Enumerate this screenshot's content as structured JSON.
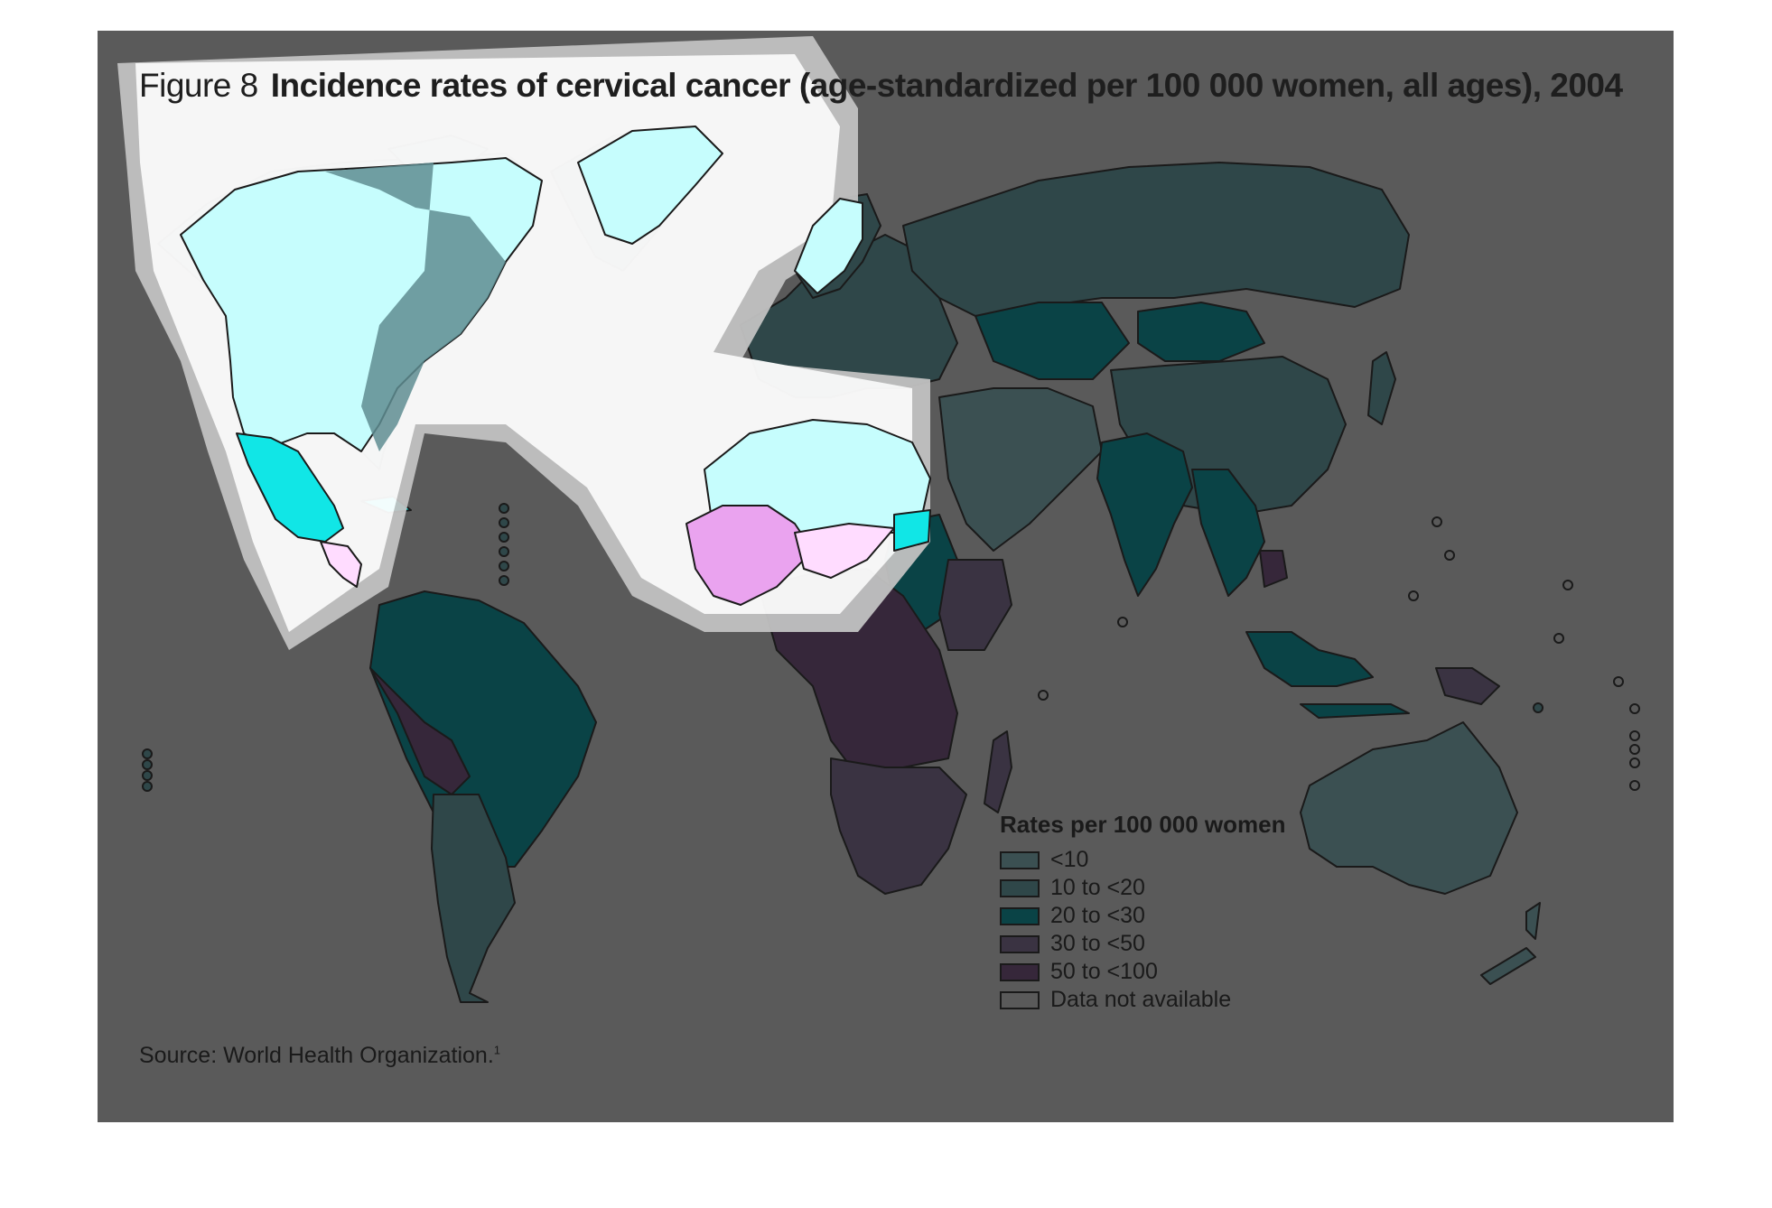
{
  "figure": {
    "label": "Figure 8",
    "title": "Incidence rates of cervical cancer (age-standardized per 100 000 women, all ages), 2004"
  },
  "legend": {
    "title": "Rates per 100 000 women",
    "items": [
      {
        "label": "<10",
        "color": "#3b5052"
      },
      {
        "label": "10 to <20",
        "color": "#2f4749"
      },
      {
        "label": "20 to <30",
        "color": "#0a4346"
      },
      {
        "label": "30 to <50",
        "color": "#3a3342"
      },
      {
        "label": "50 to <100",
        "color": "#36273a"
      },
      {
        "label": "Data not available",
        "color": "#5a5a5a"
      }
    ]
  },
  "source": {
    "text": "Source: World Health Organization.",
    "note": "1"
  },
  "colors": {
    "background": "#5a5a5a",
    "border": "#1a1a1a",
    "highlight_white": "#ffffff",
    "highlight_gray": "#c2c2c2",
    "light_cyan": "#c6fdfd",
    "cyan": "#11e6e6",
    "light_pink": "#ffdcff",
    "pink": "#eaa3ef",
    "teal_overlay": "#5f8d92"
  },
  "regions": [
    {
      "name": "North America",
      "category": "<10"
    },
    {
      "name": "Mexico",
      "category": "20 to <30"
    },
    {
      "name": "Central America",
      "category": "30 to <50"
    },
    {
      "name": "South America (north)",
      "category": "20 to <30"
    },
    {
      "name": "Bolivia / Peru",
      "category": "50 to <100"
    },
    {
      "name": "Southern Cone",
      "category": "10 to <20"
    },
    {
      "name": "Greenland",
      "category": "10 to <20"
    },
    {
      "name": "Europe",
      "category": "10 to <20"
    },
    {
      "name": "Russia",
      "category": "10 to <20"
    },
    {
      "name": "Kazakhstan",
      "category": "20 to <30"
    },
    {
      "name": "Mongolia",
      "category": "20 to <30"
    },
    {
      "name": "China",
      "category": "10 to <20"
    },
    {
      "name": "Middle East",
      "category": "<10"
    },
    {
      "name": "North Africa",
      "category": "<10"
    },
    {
      "name": "West Africa",
      "category": "30 to <50"
    },
    {
      "name": "Sudan",
      "category": "20 to <30"
    },
    {
      "name": "East Africa",
      "category": "30 to <50"
    },
    {
      "name": "Central Africa",
      "category": "50 to <100"
    },
    {
      "name": "Southern Africa",
      "category": "30 to <50"
    },
    {
      "name": "India",
      "category": "20 to <30"
    },
    {
      "name": "South-East Asia",
      "category": "20 to <30"
    },
    {
      "name": "Indonesia",
      "category": "20 to <30"
    },
    {
      "name": "Papua New Guinea",
      "category": "30 to <50"
    },
    {
      "name": "Australia",
      "category": "<10"
    },
    {
      "name": "New Zealand",
      "category": "<10"
    }
  ]
}
